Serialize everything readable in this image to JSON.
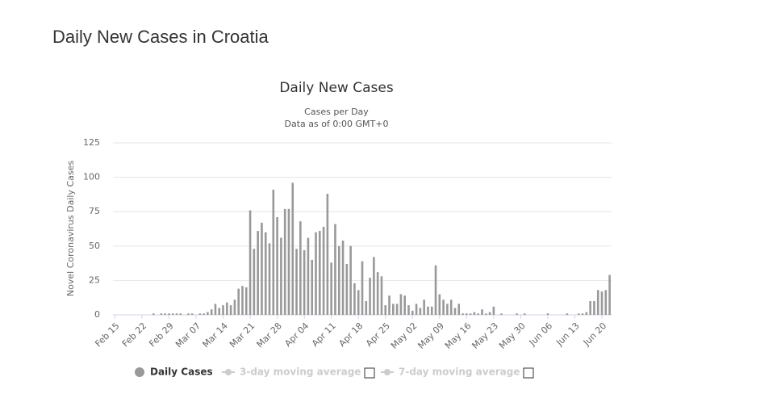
{
  "page_title": "Daily New Cases in Croatia",
  "chart_data": {
    "type": "bar",
    "title": "Daily New Cases",
    "subtitle": "Cases per Day",
    "subtitle2": "Data as of 0:00 GMT+0",
    "y_label": "Novel Coronavirus Daily Cases",
    "categories": [
      "Feb 15",
      null,
      null,
      null,
      null,
      null,
      null,
      "Feb 22",
      null,
      null,
      null,
      null,
      null,
      null,
      "Feb 29",
      null,
      null,
      null,
      null,
      null,
      null,
      "Mar 07",
      null,
      null,
      null,
      null,
      null,
      null,
      "Mar 14",
      null,
      null,
      null,
      null,
      null,
      null,
      "Mar 21",
      null,
      null,
      null,
      null,
      null,
      null,
      "Mar 28",
      null,
      null,
      null,
      null,
      null,
      null,
      "Apr 04",
      null,
      null,
      null,
      null,
      null,
      null,
      "Apr 11",
      null,
      null,
      null,
      null,
      null,
      null,
      "Apr 18",
      null,
      null,
      null,
      null,
      null,
      null,
      "Apr 25",
      null,
      null,
      null,
      null,
      null,
      null,
      "May 02",
      null,
      null,
      null,
      null,
      null,
      null,
      "May 09",
      null,
      null,
      null,
      null,
      null,
      null,
      "May 16",
      null,
      null,
      null,
      null,
      null,
      null,
      "May 23",
      null,
      null,
      null,
      null,
      null,
      null,
      "May 30",
      null,
      null,
      null,
      null,
      null,
      null,
      "Jun 06",
      null,
      null,
      null,
      null,
      null,
      null,
      "Jun 13",
      null,
      null,
      null,
      null,
      null,
      null,
      "Jun 20",
      null,
      null
    ],
    "series": [
      {
        "name": "Daily Cases",
        "color": "#999999",
        "values": [
          0,
          0,
          0,
          0,
          0,
          0,
          0,
          0,
          0,
          0,
          1,
          0,
          1,
          1,
          1,
          1,
          1,
          1,
          0,
          1,
          1,
          0,
          1,
          1,
          2,
          4,
          8,
          5,
          7,
          9,
          7,
          11,
          19,
          21,
          20,
          76,
          48,
          61,
          67,
          60,
          52,
          91,
          71,
          56,
          77,
          77,
          96,
          48,
          68,
          47,
          56,
          40,
          60,
          61,
          64,
          88,
          38,
          66,
          50,
          54,
          37,
          50,
          23,
          18,
          39,
          10,
          27,
          42,
          31,
          28,
          7,
          14,
          8,
          8,
          15,
          14,
          7,
          3,
          8,
          5,
          11,
          6,
          6,
          36,
          15,
          11,
          8,
          11,
          5,
          8,
          1,
          1,
          1,
          2,
          1,
          4,
          1,
          2,
          6,
          0,
          1,
          0,
          0,
          0,
          1,
          0,
          1,
          0,
          0,
          0,
          0,
          0,
          1,
          0,
          0,
          0,
          0,
          1,
          0,
          0,
          1,
          1,
          2,
          10,
          10,
          18,
          17,
          18,
          29
        ]
      }
    ],
    "legend_extra": [
      "3-day moving average",
      "7-day moving average"
    ],
    "ylim": [
      0,
      125
    ],
    "yticks": [
      0,
      25,
      50,
      75,
      100,
      125
    ],
    "grid": true
  }
}
